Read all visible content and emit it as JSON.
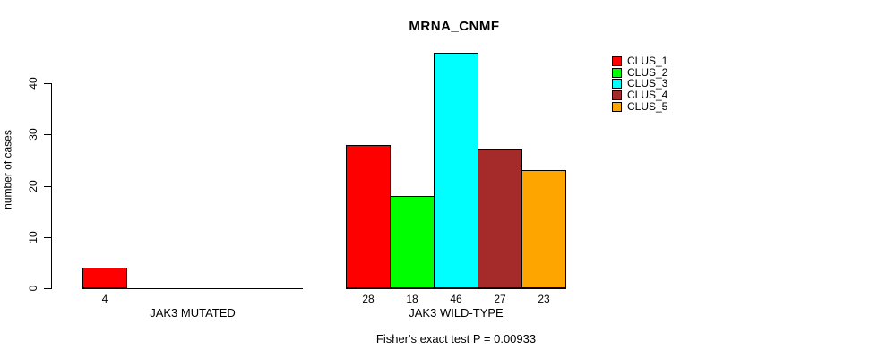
{
  "title": "MRNA_CNMF",
  "y_axis": {
    "label": "number of cases",
    "tick_labels": [
      "0",
      "10",
      "20",
      "30",
      "40"
    ]
  },
  "legend": {
    "items": [
      {
        "label": "CLUS_1",
        "color": "#FF0000"
      },
      {
        "label": "CLUS_2",
        "color": "#00FF00"
      },
      {
        "label": "CLUS_3",
        "color": "#00FFFF"
      },
      {
        "label": "CLUS_4",
        "color": "#A52A2A"
      },
      {
        "label": "CLUS_5",
        "color": "#FFA500"
      }
    ]
  },
  "footer_annotation": "Fisher's exact test P = 0.00933",
  "chart_data": {
    "type": "bar",
    "title": "MRNA_CNMF",
    "xlabel": "",
    "ylabel": "number of cases",
    "ylim": [
      0,
      46
    ],
    "y_ticks": [
      0,
      10,
      20,
      30,
      40
    ],
    "grid": false,
    "legend_position": "top-right",
    "series_names": [
      "CLUS_1",
      "CLUS_2",
      "CLUS_3",
      "CLUS_4",
      "CLUS_5"
    ],
    "series_colors": [
      "#FF0000",
      "#00FF00",
      "#00FFFF",
      "#A52A2A",
      "#FFA500"
    ],
    "groups": [
      {
        "label": "JAK3 MUTATED",
        "values": [
          4,
          0,
          0,
          0,
          0
        ],
        "bar_labels": [
          "4",
          "",
          "",
          "",
          ""
        ]
      },
      {
        "label": "JAK3 WILD-TYPE",
        "values": [
          28,
          18,
          46,
          27,
          23
        ],
        "bar_labels": [
          "28",
          "18",
          "46",
          "27",
          "23"
        ]
      }
    ],
    "annotation": "Fisher's exact test P = 0.00933"
  }
}
